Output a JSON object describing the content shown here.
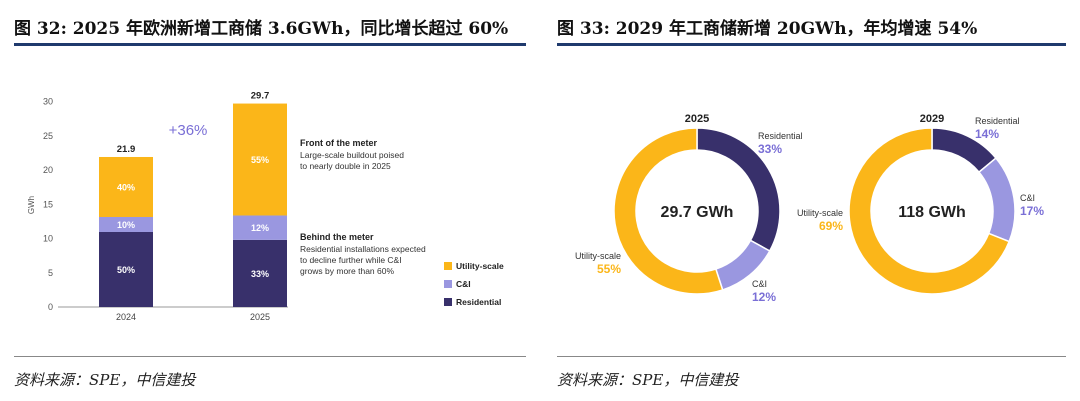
{
  "header": {
    "left_title": "图 32: 2025 年欧洲新增工商储 3.6GWh，同比增长超过 60%",
    "right_title": "图 33: 2029 年工商储新增 20GWh，年均增速 54%"
  },
  "footer": {
    "left_source": "资料来源：SPE，中信建投",
    "right_source": "资料来源：SPE，中信建投"
  },
  "colors": {
    "utility": "#fbb619",
    "ci": "#9a97e0",
    "residential": "#38306b",
    "accent": "#7a6fd6",
    "rule": "#1f3a6d"
  },
  "chart_data": [
    {
      "type": "bar",
      "stacked": true,
      "title": "",
      "xlabel": "",
      "ylabel": "GWh",
      "ylim": [
        0,
        30
      ],
      "yticks": [
        "0",
        "5",
        "10",
        "15",
        "20",
        "25",
        "30"
      ],
      "categories": [
        "2024",
        "2025"
      ],
      "totals": [
        21.9,
        29.7
      ],
      "total_labels": [
        "21.9",
        "29.7"
      ],
      "series": [
        {
          "name": "Residential",
          "values": [
            10.95,
            9.8
          ],
          "labels": [
            "50%",
            "33%"
          ]
        },
        {
          "name": "C&I",
          "values": [
            2.19,
            3.56
          ],
          "labels": [
            "10%",
            "12%"
          ]
        },
        {
          "name": "Utility-scale",
          "values": [
            8.76,
            16.34
          ],
          "labels": [
            "40%",
            "55%"
          ]
        }
      ],
      "growth_label": "+36%",
      "annotations": [
        {
          "heading": "Front of the meter",
          "lines": [
            "Large-scale buildout poised",
            "to nearly double in 2025"
          ]
        },
        {
          "heading": "Behind the meter",
          "lines": [
            "Residential installations expected",
            "to decline further while C&I",
            "grows by more than 60%"
          ]
        }
      ],
      "legend": [
        "Utility-scale",
        "C&I",
        "Residential"
      ]
    },
    {
      "type": "pie",
      "donut": true,
      "title": "2025",
      "center_label": "29.7 GWh",
      "slices": [
        {
          "name": "Residential",
          "value": 33,
          "label": "33%"
        },
        {
          "name": "C&I",
          "value": 12,
          "label": "12%"
        },
        {
          "name": "Utility-scale",
          "value": 55,
          "label": "55%"
        }
      ]
    },
    {
      "type": "pie",
      "donut": true,
      "title": "2029",
      "center_label": "118 GWh",
      "slices": [
        {
          "name": "Residential",
          "value": 14,
          "label": "14%"
        },
        {
          "name": "C&I",
          "value": 17,
          "label": "17%"
        },
        {
          "name": "Utility-scale",
          "value": 69,
          "label": "69%"
        }
      ]
    }
  ]
}
